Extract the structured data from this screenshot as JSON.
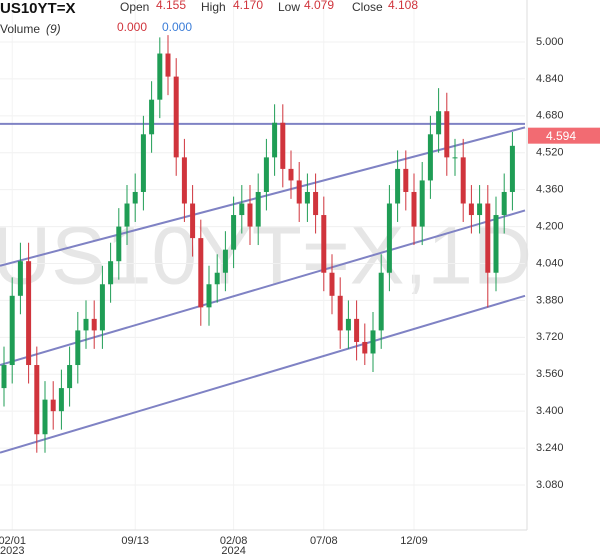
{
  "chart_data": {
    "type": "candlestick",
    "symbol": "US10YT=X",
    "legend_items": [
      {
        "label": "Open",
        "value": "4.155"
      },
      {
        "label": "High",
        "value": "4.170"
      },
      {
        "label": "Low",
        "value": "4.079"
      },
      {
        "label": "Close",
        "value": "4.108"
      }
    ],
    "volume_label": "Volume",
    "volume_period": "(9)",
    "volume_values": [
      "0.000",
      "0.000"
    ],
    "watermark": "US10YT=X,1D",
    "up_color": "#1f9d55",
    "down_color": "#d0343c",
    "line_color": "#7f82c4",
    "last_price": {
      "value": 4.594,
      "label": "4.594"
    },
    "last_price_color": "#f26b72",
    "ylim": [
      2.885,
      5.182
    ],
    "yticks": [
      {
        "value": 3.08,
        "label": "3.080"
      },
      {
        "value": 3.24,
        "label": "3.240"
      },
      {
        "value": 3.4,
        "label": "3.400"
      },
      {
        "value": 3.56,
        "label": "3.560"
      },
      {
        "value": 3.72,
        "label": "3.720"
      },
      {
        "value": 3.88,
        "label": "3.880"
      },
      {
        "value": 4.04,
        "label": "4.040"
      },
      {
        "value": 4.2,
        "label": "4.200"
      },
      {
        "value": 4.36,
        "label": "4.360"
      },
      {
        "value": 4.52,
        "label": "4.520"
      },
      {
        "value": 4.68,
        "label": "4.680"
      },
      {
        "value": 4.84,
        "label": "4.840"
      },
      {
        "value": 5.0,
        "label": "5.000"
      }
    ],
    "grid": true,
    "trend_lines": [
      {
        "start": 4.645,
        "end": 4.645
      },
      {
        "start": 4.03,
        "end": 4.63
      },
      {
        "start": 3.6,
        "end": 4.27
      },
      {
        "start": 3.22,
        "end": 3.9
      }
    ],
    "categories": [
      null,
      "02/01",
      null,
      null,
      null,
      null,
      null,
      null,
      null,
      null,
      null,
      null,
      null,
      null,
      null,
      null,
      "09/13",
      null,
      null,
      null,
      null,
      null,
      null,
      null,
      null,
      null,
      null,
      null,
      "02/08",
      null,
      null,
      null,
      null,
      null,
      null,
      null,
      null,
      null,
      null,
      "07/08",
      null,
      null,
      null,
      null,
      null,
      null,
      null,
      null,
      null,
      null,
      "12/09",
      null,
      null,
      null,
      null,
      null,
      null,
      null,
      null,
      null,
      null,
      null,
      null
    ],
    "year_labels": [
      null,
      "2023",
      null,
      null,
      null,
      null,
      null,
      null,
      null,
      null,
      null,
      null,
      null,
      null,
      null,
      null,
      null,
      null,
      null,
      null,
      null,
      null,
      null,
      null,
      null,
      null,
      null,
      null,
      "2024",
      null,
      null,
      null,
      null,
      null,
      null,
      null,
      null,
      null,
      null,
      null,
      null,
      null,
      null,
      null,
      null,
      null,
      null,
      null,
      null,
      null,
      null,
      null,
      null,
      null,
      null,
      null,
      null,
      null,
      null,
      null,
      null,
      null,
      null
    ],
    "ohlc": [
      [
        3.5,
        3.68,
        3.42,
        3.6
      ],
      [
        3.6,
        3.98,
        3.52,
        3.9
      ],
      [
        3.9,
        4.13,
        3.82,
        4.05
      ],
      [
        4.05,
        4.13,
        3.52,
        3.6
      ],
      [
        3.6,
        3.68,
        3.22,
        3.3
      ],
      [
        3.3,
        3.53,
        3.22,
        3.45
      ],
      [
        3.45,
        3.53,
        3.32,
        3.4
      ],
      [
        3.4,
        3.58,
        3.32,
        3.5
      ],
      [
        3.5,
        3.68,
        3.42,
        3.6
      ],
      [
        3.6,
        3.83,
        3.52,
        3.75
      ],
      [
        3.75,
        3.88,
        3.67,
        3.8
      ],
      [
        3.8,
        3.88,
        3.67,
        3.75
      ],
      [
        3.75,
        4.03,
        3.67,
        3.95
      ],
      [
        3.95,
        4.13,
        3.87,
        4.05
      ],
      [
        4.05,
        4.28,
        3.97,
        4.2
      ],
      [
        4.2,
        4.38,
        4.12,
        4.3
      ],
      [
        4.3,
        4.43,
        4.22,
        4.35
      ],
      [
        4.35,
        4.68,
        4.27,
        4.6
      ],
      [
        4.6,
        4.83,
        4.52,
        4.75
      ],
      [
        4.75,
        5.02,
        4.67,
        4.95
      ],
      [
        4.95,
        5.03,
        4.77,
        4.85
      ],
      [
        4.85,
        4.93,
        4.42,
        4.5
      ],
      [
        4.5,
        4.58,
        4.22,
        4.3
      ],
      [
        4.3,
        4.38,
        4.07,
        4.15
      ],
      [
        4.15,
        4.23,
        3.77,
        3.85
      ],
      [
        3.85,
        4.03,
        3.77,
        3.95
      ],
      [
        3.95,
        4.08,
        3.87,
        4.0
      ],
      [
        4.0,
        4.18,
        3.92,
        4.1
      ],
      [
        4.1,
        4.33,
        4.02,
        4.25
      ],
      [
        4.25,
        4.38,
        4.17,
        4.3
      ],
      [
        4.3,
        4.38,
        4.12,
        4.2
      ],
      [
        4.2,
        4.43,
        4.12,
        4.35
      ],
      [
        4.35,
        4.58,
        4.27,
        4.5
      ],
      [
        4.5,
        4.73,
        4.42,
        4.65
      ],
      [
        4.65,
        4.73,
        4.37,
        4.45
      ],
      [
        4.45,
        4.53,
        4.32,
        4.4
      ],
      [
        4.4,
        4.48,
        4.22,
        4.3
      ],
      [
        4.3,
        4.43,
        4.22,
        4.35
      ],
      [
        4.35,
        4.43,
        4.17,
        4.25
      ],
      [
        4.25,
        4.33,
        3.92,
        4.0
      ],
      [
        4.0,
        4.08,
        3.82,
        3.9
      ],
      [
        3.9,
        3.98,
        3.67,
        3.75
      ],
      [
        3.75,
        3.88,
        3.67,
        3.8
      ],
      [
        3.8,
        3.88,
        3.62,
        3.7
      ],
      [
        3.7,
        3.78,
        3.6,
        3.65
      ],
      [
        3.65,
        3.83,
        3.57,
        3.75
      ],
      [
        3.75,
        4.08,
        3.67,
        4.0
      ],
      [
        4.0,
        4.38,
        3.92,
        4.3
      ],
      [
        4.3,
        4.53,
        4.22,
        4.45
      ],
      [
        4.45,
        4.53,
        4.27,
        4.35
      ],
      [
        4.35,
        4.43,
        4.12,
        4.2
      ],
      [
        4.2,
        4.48,
        4.12,
        4.4
      ],
      [
        4.4,
        4.68,
        4.32,
        4.6
      ],
      [
        4.6,
        4.8,
        4.52,
        4.7
      ],
      [
        4.7,
        4.78,
        4.42,
        4.5
      ],
      [
        4.5,
        4.58,
        4.42,
        4.5
      ],
      [
        4.5,
        4.58,
        4.22,
        4.3
      ],
      [
        4.3,
        4.38,
        4.17,
        4.25
      ],
      [
        4.25,
        4.38,
        4.17,
        4.3
      ],
      [
        4.3,
        4.38,
        3.85,
        4.0
      ],
      [
        4.0,
        4.33,
        3.92,
        4.25
      ],
      [
        4.25,
        4.43,
        4.17,
        4.35
      ],
      [
        4.35,
        4.61,
        4.27,
        4.55
      ]
    ]
  }
}
